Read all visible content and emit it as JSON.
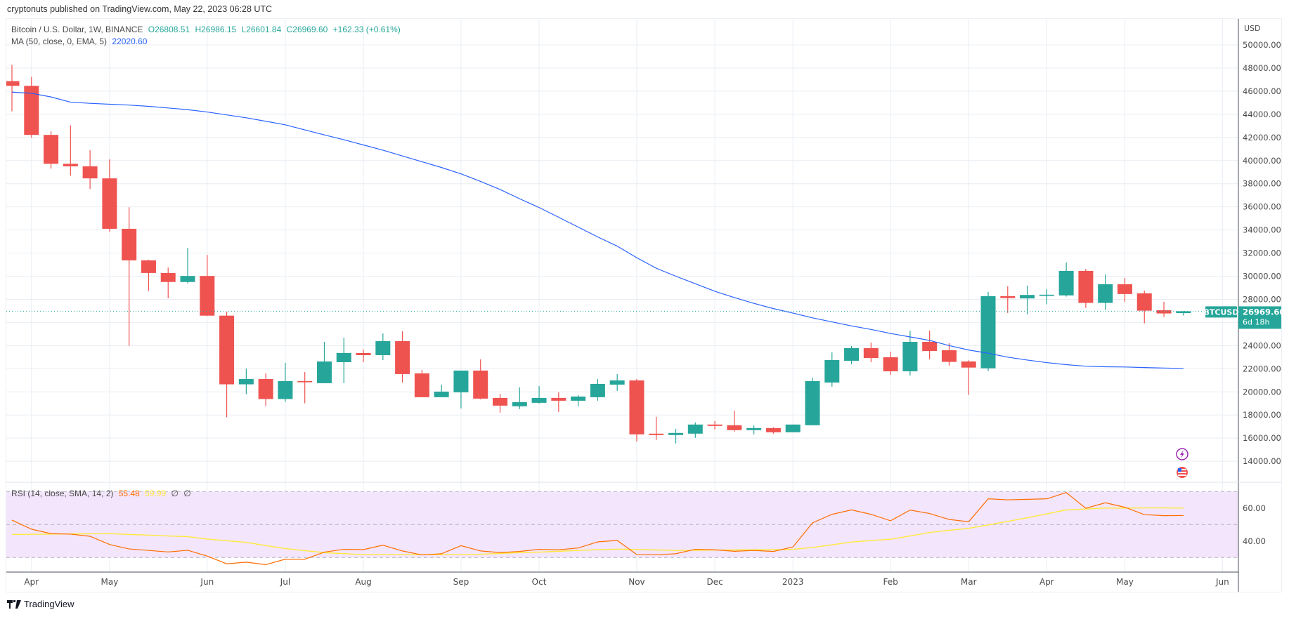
{
  "publisher_line": "cryptonuts published on TradingView.com, May 22, 2023 06:28 UTC",
  "legend": {
    "symbol": "Bitcoin / U.S. Dollar, 1W, BINANCE",
    "open": "O26808.51",
    "high": "H26986.15",
    "low": "L26601.84",
    "close": "C26969.60",
    "change": "+162.33 (+0.61%)",
    "ma_label": "MA (50, close, 0, EMA, 5)",
    "ma_value": "22020.60"
  },
  "rsi_legend": {
    "label": "RSI (14, close, SMA, 14, 2)",
    "rsi_value": "55.48",
    "sma_value": "59.99",
    "extra1": "∅",
    "extra2": "∅"
  },
  "price_axis": {
    "currency": "USD",
    "ticks": [
      "50000.00",
      "48000.00",
      "46000.00",
      "44000.00",
      "42000.00",
      "40000.00",
      "38000.00",
      "36000.00",
      "34000.00",
      "32000.00",
      "30000.00",
      "28000.00",
      "24000.00",
      "22000.00",
      "20000.00",
      "18000.00",
      "16000.00",
      "14000.00"
    ],
    "last_price": "26969.60",
    "countdown": "6d 18h",
    "symbol_tag": "BTCUSD"
  },
  "rsi_axis": {
    "ticks": [
      "60.00",
      "40.00"
    ]
  },
  "time_axis": {
    "ticks": [
      {
        "label": "Apr",
        "date": "2022-04-04"
      },
      {
        "label": "May",
        "date": "2022-05-02"
      },
      {
        "label": "Jun",
        "date": "2022-06-06"
      },
      {
        "label": "Jul",
        "date": "2022-07-04"
      },
      {
        "label": "Aug",
        "date": "2022-08-01"
      },
      {
        "label": "Sep",
        "date": "2022-09-05"
      },
      {
        "label": "Oct",
        "date": "2022-10-03"
      },
      {
        "label": "Nov",
        "date": "2022-11-07"
      },
      {
        "label": "Dec",
        "date": "2022-12-05"
      },
      {
        "label": "2023",
        "date": "2023-01-02"
      },
      {
        "label": "Feb",
        "date": "2023-02-06"
      },
      {
        "label": "Mar",
        "date": "2023-03-06"
      },
      {
        "label": "Apr",
        "date": "2023-04-03"
      },
      {
        "label": "May",
        "date": "2023-05-01"
      },
      {
        "label": "Jun",
        "date": "2023-06-05"
      }
    ]
  },
  "logo_text": "TradingView",
  "colors": {
    "up": "#26a69a",
    "down": "#ef5350",
    "ma": "#2962ff",
    "rsi": "#ff6d00",
    "rsi_sma": "#ffe93b",
    "rsi_band": "#f3e5fc",
    "grid": "#e9eef4"
  },
  "icons": [
    "lightning-event-icon",
    "us-flag-event-icon"
  ],
  "chart_data": [
    {
      "type": "candlestick",
      "title": "Bitcoin / U.S. Dollar, 1W, BINANCE",
      "ylabel": "USD",
      "ylim": [
        13000,
        51000
      ],
      "grid": true,
      "x": [
        "2022-03-28",
        "2022-04-04",
        "2022-04-11",
        "2022-04-18",
        "2022-04-25",
        "2022-05-02",
        "2022-05-09",
        "2022-05-16",
        "2022-05-23",
        "2022-05-30",
        "2022-06-06",
        "2022-06-13",
        "2022-06-20",
        "2022-06-27",
        "2022-07-04",
        "2022-07-11",
        "2022-07-18",
        "2022-07-25",
        "2022-08-01",
        "2022-08-08",
        "2022-08-15",
        "2022-08-22",
        "2022-08-29",
        "2022-09-05",
        "2022-09-12",
        "2022-09-19",
        "2022-09-26",
        "2022-10-03",
        "2022-10-10",
        "2022-10-17",
        "2022-10-24",
        "2022-10-31",
        "2022-11-07",
        "2022-11-14",
        "2022-11-21",
        "2022-11-28",
        "2022-12-05",
        "2022-12-12",
        "2022-12-19",
        "2022-12-26",
        "2023-01-02",
        "2023-01-09",
        "2023-01-16",
        "2023-01-23",
        "2023-01-30",
        "2023-02-06",
        "2023-02-13",
        "2023-02-20",
        "2023-02-27",
        "2023-03-06",
        "2023-03-13",
        "2023-03-20",
        "2023-03-27",
        "2023-04-03",
        "2023-04-10",
        "2023-04-17",
        "2023-04-24",
        "2023-05-01",
        "2023-05-08",
        "2023-05-15",
        "2023-05-22"
      ],
      "ohlc": [
        [
          46870,
          48280,
          44260,
          46460
        ],
        [
          46460,
          47230,
          41980,
          42220
        ],
        [
          42220,
          42530,
          39300,
          39720
        ],
        [
          39720,
          43050,
          38690,
          39500
        ],
        [
          39500,
          40890,
          37540,
          38460
        ],
        [
          38460,
          40100,
          33860,
          34100
        ],
        [
          34100,
          35960,
          23980,
          31370
        ],
        [
          31370,
          31420,
          28710,
          30280
        ],
        [
          30280,
          30750,
          28100,
          29500
        ],
        [
          29500,
          32450,
          29380,
          30020
        ],
        [
          30020,
          31840,
          26560,
          26590
        ],
        [
          26590,
          26930,
          17800,
          20650
        ],
        [
          20650,
          22020,
          19800,
          21110
        ],
        [
          21110,
          21600,
          18770,
          19380
        ],
        [
          19380,
          22510,
          19130,
          20930
        ],
        [
          20930,
          21720,
          19010,
          20830
        ],
        [
          20748,
          24324,
          20748,
          22627
        ],
        [
          22566,
          24687,
          20748,
          23354
        ],
        [
          23354,
          23657,
          22566,
          23172
        ],
        [
          23172,
          25051,
          22748,
          24384
        ],
        [
          24384,
          25233,
          20809,
          21536
        ],
        [
          21597,
          21900,
          19536,
          19536
        ],
        [
          19536,
          20627,
          19536,
          20021
        ],
        [
          19961,
          21839,
          18567,
          21839
        ],
        [
          21839,
          22809,
          19355,
          19415
        ],
        [
          19476,
          19839,
          18203,
          18809
        ],
        [
          18749,
          20385,
          18506,
          19112
        ],
        [
          19052,
          20506,
          18991,
          19476
        ],
        [
          19476,
          19961,
          18264,
          19233
        ],
        [
          19233,
          19718,
          18749,
          19597
        ],
        [
          19536,
          21112,
          19233,
          20688
        ],
        [
          20627,
          21536,
          20082,
          20991
        ],
        [
          20991,
          21112,
          15719,
          16325
        ],
        [
          16385,
          17840,
          15840,
          16264
        ],
        [
          16264,
          16809,
          15537,
          16446
        ],
        [
          16385,
          17355,
          16022,
          17173
        ],
        [
          17173,
          17476,
          16749,
          17052
        ],
        [
          17112,
          18385,
          16567,
          16688
        ],
        [
          16688,
          17112,
          16325,
          16870
        ],
        [
          16870,
          16931,
          16385,
          16506
        ],
        [
          16506,
          17173,
          16506,
          17173
        ],
        [
          17112,
          21233,
          17112,
          20930
        ],
        [
          20809,
          23415,
          20445,
          22748
        ],
        [
          22688,
          23960,
          22385,
          23778
        ],
        [
          23778,
          24263,
          22566,
          22930
        ],
        [
          22991,
          23475,
          21476,
          21779
        ],
        [
          21779,
          25293,
          21415,
          24324
        ],
        [
          24324,
          25293,
          22809,
          23536
        ],
        [
          23600,
          24210,
          22270,
          22590
        ],
        [
          22630,
          22730,
          19740,
          22100
        ],
        [
          22040,
          28640,
          21800,
          28280
        ],
        [
          28280,
          29130,
          26820,
          28110
        ],
        [
          28080,
          29190,
          26700,
          28380
        ],
        [
          28300,
          28880,
          27570,
          28400
        ],
        [
          28340,
          31190,
          28240,
          30460
        ],
        [
          30460,
          30640,
          27260,
          27690
        ],
        [
          27690,
          30160,
          27080,
          29310
        ],
        [
          29310,
          29850,
          27790,
          28460
        ],
        [
          28520,
          28760,
          25930,
          27020
        ],
        [
          27060,
          27790,
          26470,
          26780
        ],
        [
          26808.51,
          26986.15,
          26601.84,
          26969.6
        ]
      ],
      "ma": {
        "name": "MA (50, close, 0, EMA, 5)",
        "values": [
          45920,
          45820,
          45500,
          45050,
          44950,
          44870,
          44800,
          44690,
          44550,
          44400,
          44200,
          43950,
          43700,
          43400,
          43090,
          42650,
          42220,
          41800,
          41350,
          40900,
          40400,
          39900,
          39400,
          38850,
          38200,
          37500,
          36700,
          35940,
          35100,
          34250,
          33400,
          32600,
          31600,
          30690,
          30000,
          29350,
          28700,
          28150,
          27650,
          27200,
          26810,
          26400,
          26050,
          25700,
          25400,
          25050,
          24750,
          24450,
          24000,
          23620,
          23340,
          23000,
          22750,
          22530,
          22350,
          22220,
          22170,
          22150,
          22100,
          22060,
          22020.6
        ]
      }
    },
    {
      "type": "line",
      "title": "RSI (14, close, SMA, 14, 2)",
      "ylim": [
        22,
        75
      ],
      "bands": {
        "upper": 70,
        "middle": 50,
        "lower": 30
      },
      "series": [
        {
          "name": "RSI",
          "values": [
            52.7,
            47.2,
            44.5,
            44.2,
            42.9,
            37.9,
            35.2,
            34.3,
            33.4,
            34.4,
            30.9,
            26.2,
            27.2,
            25.7,
            29.0,
            29.0,
            33.3,
            35.0,
            34.8,
            37.5,
            34.0,
            31.6,
            32.3,
            37.2,
            34.0,
            33.0,
            33.7,
            35.0,
            34.7,
            35.8,
            39.5,
            40.4,
            31.8,
            31.7,
            32.3,
            35.0,
            34.7,
            33.8,
            34.3,
            33.7,
            36.4,
            51.0,
            56.2,
            58.9,
            56.2,
            52.3,
            58.8,
            56.7,
            53.1,
            51.7,
            65.6,
            65.0,
            65.3,
            65.6,
            69.4,
            59.9,
            63.2,
            60.5,
            56.0,
            55.4,
            55.48
          ]
        },
        {
          "name": "SMA",
          "values": [
            44.0,
            44.1,
            44.2,
            44.3,
            44.4,
            44.5,
            44.0,
            43.6,
            43.1,
            42.7,
            41.2,
            40.2,
            39.2,
            37.3,
            35.4,
            34.2,
            33.0,
            32.4,
            31.8,
            31.8,
            31.7,
            31.7,
            31.7,
            31.7,
            32.0,
            32.5,
            33.0,
            33.3,
            33.8,
            34.3,
            34.8,
            35.1,
            34.9,
            34.6,
            34.3,
            34.4,
            34.5,
            34.6,
            34.7,
            34.7,
            35.0,
            36.1,
            37.7,
            39.4,
            40.3,
            41.1,
            43.1,
            45.2,
            46.5,
            47.7,
            49.8,
            51.9,
            54.1,
            56.5,
            58.9,
            59.4,
            60.0,
            60.0,
            60.1,
            60.1,
            59.99
          ]
        }
      ]
    }
  ]
}
